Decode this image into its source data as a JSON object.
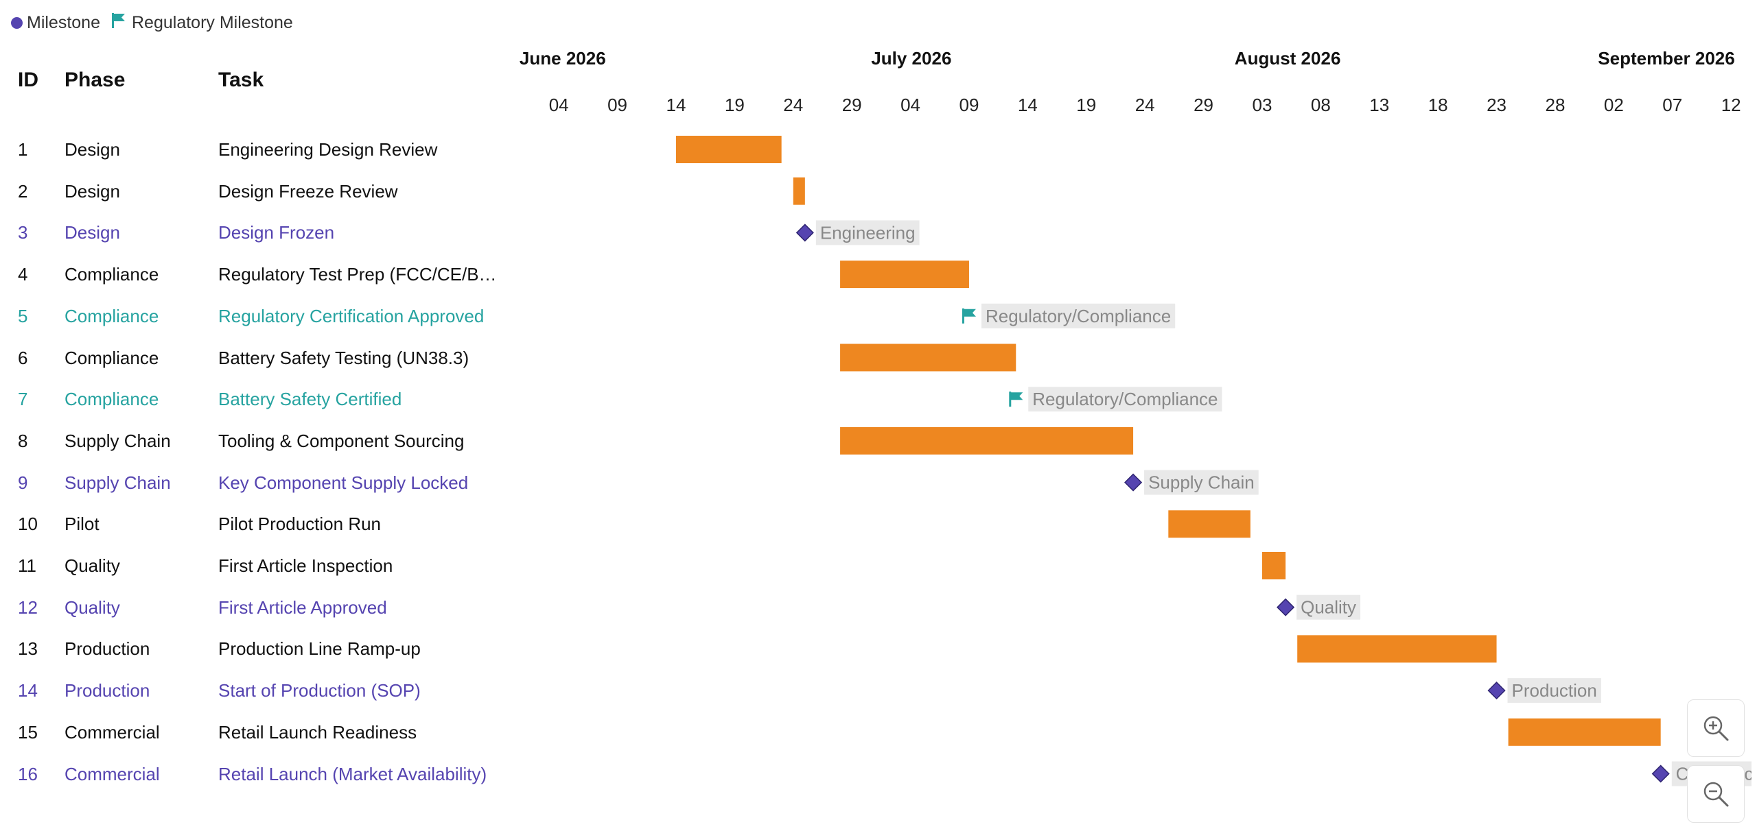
{
  "legend": {
    "milestone_label": "Milestone",
    "regulatory_label": "Regulatory Milestone"
  },
  "columns": {
    "id": "ID",
    "phase": "Phase",
    "task": "Task"
  },
  "colors": {
    "bar": "#ee8720",
    "milestone": "#5544b0",
    "regulatory": "#26a3a0",
    "text": "#111111",
    "label_bg": "#e9e9e9",
    "label_text": "#888888"
  },
  "chart_data": {
    "type": "gantt",
    "timeline": {
      "start": "2026-06-02",
      "end": "2026-09-14",
      "months": [
        {
          "label": "June 2026",
          "date": "2026-06-01"
        },
        {
          "label": "July 2026",
          "date": "2026-07-01"
        },
        {
          "label": "August 2026",
          "date": "2026-08-01"
        },
        {
          "label": "September 2026",
          "date": "2026-09-01"
        }
      ],
      "ticks": [
        {
          "label": "04",
          "date": "2026-06-04"
        },
        {
          "label": "09",
          "date": "2026-06-09"
        },
        {
          "label": "14",
          "date": "2026-06-14"
        },
        {
          "label": "19",
          "date": "2026-06-19"
        },
        {
          "label": "24",
          "date": "2026-06-24"
        },
        {
          "label": "29",
          "date": "2026-06-29"
        },
        {
          "label": "04",
          "date": "2026-07-04"
        },
        {
          "label": "09",
          "date": "2026-07-09"
        },
        {
          "label": "14",
          "date": "2026-07-14"
        },
        {
          "label": "19",
          "date": "2026-07-19"
        },
        {
          "label": "24",
          "date": "2026-07-24"
        },
        {
          "label": "29",
          "date": "2026-07-29"
        },
        {
          "label": "03",
          "date": "2026-08-03"
        },
        {
          "label": "08",
          "date": "2026-08-08"
        },
        {
          "label": "13",
          "date": "2026-08-13"
        },
        {
          "label": "18",
          "date": "2026-08-18"
        },
        {
          "label": "23",
          "date": "2026-08-23"
        },
        {
          "label": "28",
          "date": "2026-08-28"
        },
        {
          "label": "02",
          "date": "2026-09-02"
        },
        {
          "label": "07",
          "date": "2026-09-07"
        },
        {
          "label": "12",
          "date": "2026-09-12"
        }
      ]
    },
    "tasks": [
      {
        "id": "1",
        "phase": "Design",
        "task": "Engineering Design Review",
        "kind": "task",
        "start": "2026-06-14",
        "end": "2026-06-23"
      },
      {
        "id": "2",
        "phase": "Design",
        "task": "Design Freeze Review",
        "kind": "task",
        "start": "2026-06-24",
        "end": "2026-06-25"
      },
      {
        "id": "3",
        "phase": "Design",
        "task": "Design Frozen",
        "kind": "milestone",
        "date": "2026-06-25",
        "label": "Engineering"
      },
      {
        "id": "4",
        "phase": "Compliance",
        "task": "Regulatory Test Prep (FCC/CE/B…",
        "kind": "task",
        "start": "2026-06-28",
        "end": "2026-07-09"
      },
      {
        "id": "5",
        "phase": "Compliance",
        "task": "Regulatory Certification Approved",
        "kind": "regulatory",
        "date": "2026-07-09",
        "label": "Regulatory/Compliance"
      },
      {
        "id": "6",
        "phase": "Compliance",
        "task": "Battery Safety Testing (UN38.3)",
        "kind": "task",
        "start": "2026-06-28",
        "end": "2026-07-13"
      },
      {
        "id": "7",
        "phase": "Compliance",
        "task": "Battery Safety Certified",
        "kind": "regulatory",
        "date": "2026-07-13",
        "label": "Regulatory/Compliance"
      },
      {
        "id": "8",
        "phase": "Supply Chain",
        "task": "Tooling & Component Sourcing",
        "kind": "task",
        "start": "2026-06-28",
        "end": "2026-07-23"
      },
      {
        "id": "9",
        "phase": "Supply Chain",
        "task": "Key Component Supply Locked",
        "kind": "milestone",
        "date": "2026-07-23",
        "label": "Supply Chain"
      },
      {
        "id": "10",
        "phase": "Pilot",
        "task": "Pilot Production Run",
        "kind": "task",
        "start": "2026-07-26",
        "end": "2026-08-02"
      },
      {
        "id": "11",
        "phase": "Quality",
        "task": "First Article Inspection",
        "kind": "task",
        "start": "2026-08-03",
        "end": "2026-08-05"
      },
      {
        "id": "12",
        "phase": "Quality",
        "task": "First Article Approved",
        "kind": "milestone",
        "date": "2026-08-05",
        "label": "Quality"
      },
      {
        "id": "13",
        "phase": "Production",
        "task": "Production Line Ramp-up",
        "kind": "task",
        "start": "2026-08-06",
        "end": "2026-08-23"
      },
      {
        "id": "14",
        "phase": "Production",
        "task": "Start of Production (SOP)",
        "kind": "milestone",
        "date": "2026-08-23",
        "label": "Production"
      },
      {
        "id": "15",
        "phase": "Commercial",
        "task": "Retail Launch Readiness",
        "kind": "task",
        "start": "2026-08-24",
        "end": "2026-09-06"
      },
      {
        "id": "16",
        "phase": "Commercial",
        "task": "Retail Launch (Market Availability)",
        "kind": "milestone",
        "date": "2026-09-06",
        "label": "Commercial"
      }
    ]
  },
  "zoom": {
    "in_icon": "zoom-in-icon",
    "out_icon": "zoom-out-icon"
  }
}
